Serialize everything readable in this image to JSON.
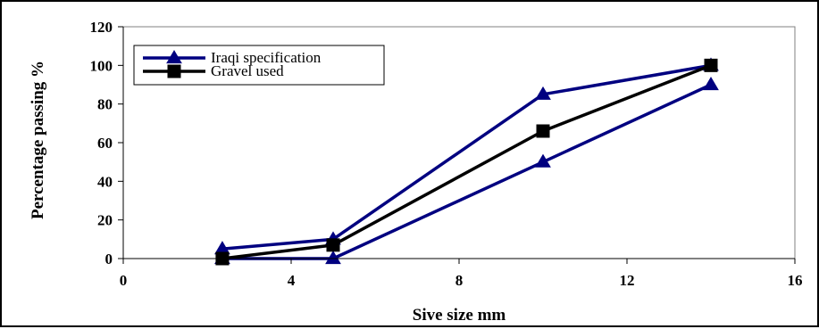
{
  "chart_data": {
    "type": "line",
    "xlabel": "Sive size mm",
    "ylabel": "Percentage passing %",
    "xlim": [
      0,
      16
    ],
    "ylim": [
      0,
      120
    ],
    "x_ticks": [
      "0",
      "4",
      "8",
      "12",
      "16"
    ],
    "y_ticks": [
      "0",
      "20",
      "40",
      "60",
      "80",
      "100",
      "120"
    ],
    "grid": false,
    "legend_position": "top-left",
    "series": [
      {
        "name": "Iraqi specification",
        "marker": "triangle",
        "color": "#000080",
        "lines": [
          {
            "x": [
              2.36,
              5,
              10,
              14
            ],
            "y": [
              5,
              10,
              85,
              100
            ]
          },
          {
            "x": [
              2.36,
              5,
              10,
              14
            ],
            "y": [
              0,
              0,
              50,
              90
            ]
          }
        ]
      },
      {
        "name": "Gravel used",
        "marker": "square",
        "color": "#000000",
        "lines": [
          {
            "x": [
              2.36,
              5,
              10,
              14
            ],
            "y": [
              0,
              7,
              66,
              100
            ]
          }
        ]
      }
    ]
  }
}
